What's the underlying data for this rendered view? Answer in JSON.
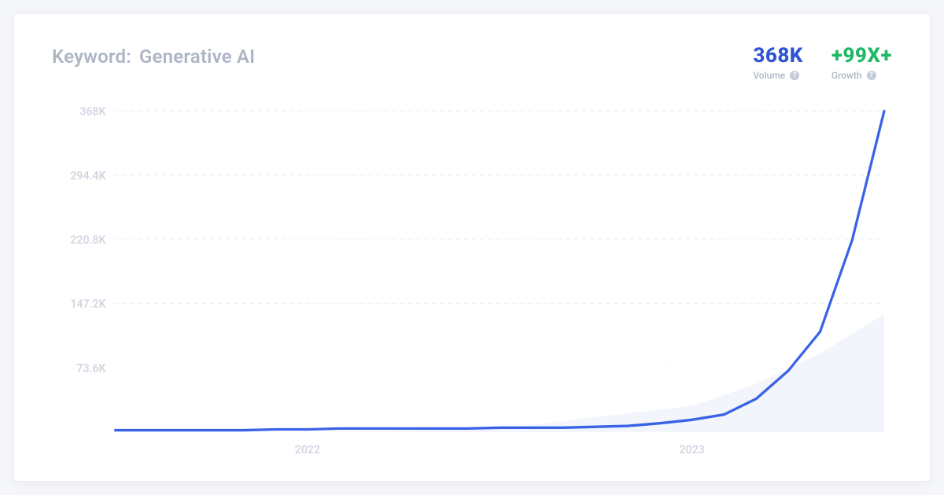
{
  "header": {
    "title_label": "Keyword:",
    "keyword": "Generative AI"
  },
  "stats": {
    "volume": {
      "value": "368K",
      "label": "Volume",
      "color": "#2f55d4"
    },
    "growth": {
      "value": "+99X+",
      "label": "Growth",
      "color": "#1fb866"
    }
  },
  "chart": {
    "type": "line",
    "background_color": "#ffffff",
    "grid_color": "#e9ecf3",
    "axis_label_color": "#d1d6e0",
    "area_fill_color": "#f2f5fb",
    "line_color": "#3a62e6",
    "line_width": 3.2,
    "ylim": [
      0,
      368
    ],
    "yticks": [
      {
        "v": 73.6,
        "label": "73.6K"
      },
      {
        "v": 147.2,
        "label": "147.2K"
      },
      {
        "v": 220.8,
        "label": "220.8K"
      },
      {
        "v": 294.4,
        "label": "294.4K"
      },
      {
        "v": 368,
        "label": "368K"
      }
    ],
    "xlim": [
      0,
      24
    ],
    "xticks": [
      {
        "v": 6,
        "label": "2022"
      },
      {
        "v": 18,
        "label": "2023"
      }
    ],
    "series": {
      "x": [
        0,
        1,
        2,
        3,
        4,
        5,
        6,
        7,
        8,
        9,
        10,
        11,
        12,
        13,
        14,
        15,
        16,
        17,
        18,
        19,
        20,
        21,
        22,
        23,
        24
      ],
      "y": [
        2,
        2,
        2,
        2,
        2,
        3,
        3,
        4,
        4,
        4,
        4,
        4,
        5,
        5,
        5,
        6,
        7,
        10,
        14,
        20,
        38,
        70,
        115,
        220,
        368
      ]
    },
    "area_series": {
      "x": [
        0,
        6,
        12,
        18,
        20,
        22,
        24
      ],
      "y": [
        0,
        0,
        4,
        30,
        55,
        90,
        135
      ]
    },
    "label_fontsize": 14
  }
}
